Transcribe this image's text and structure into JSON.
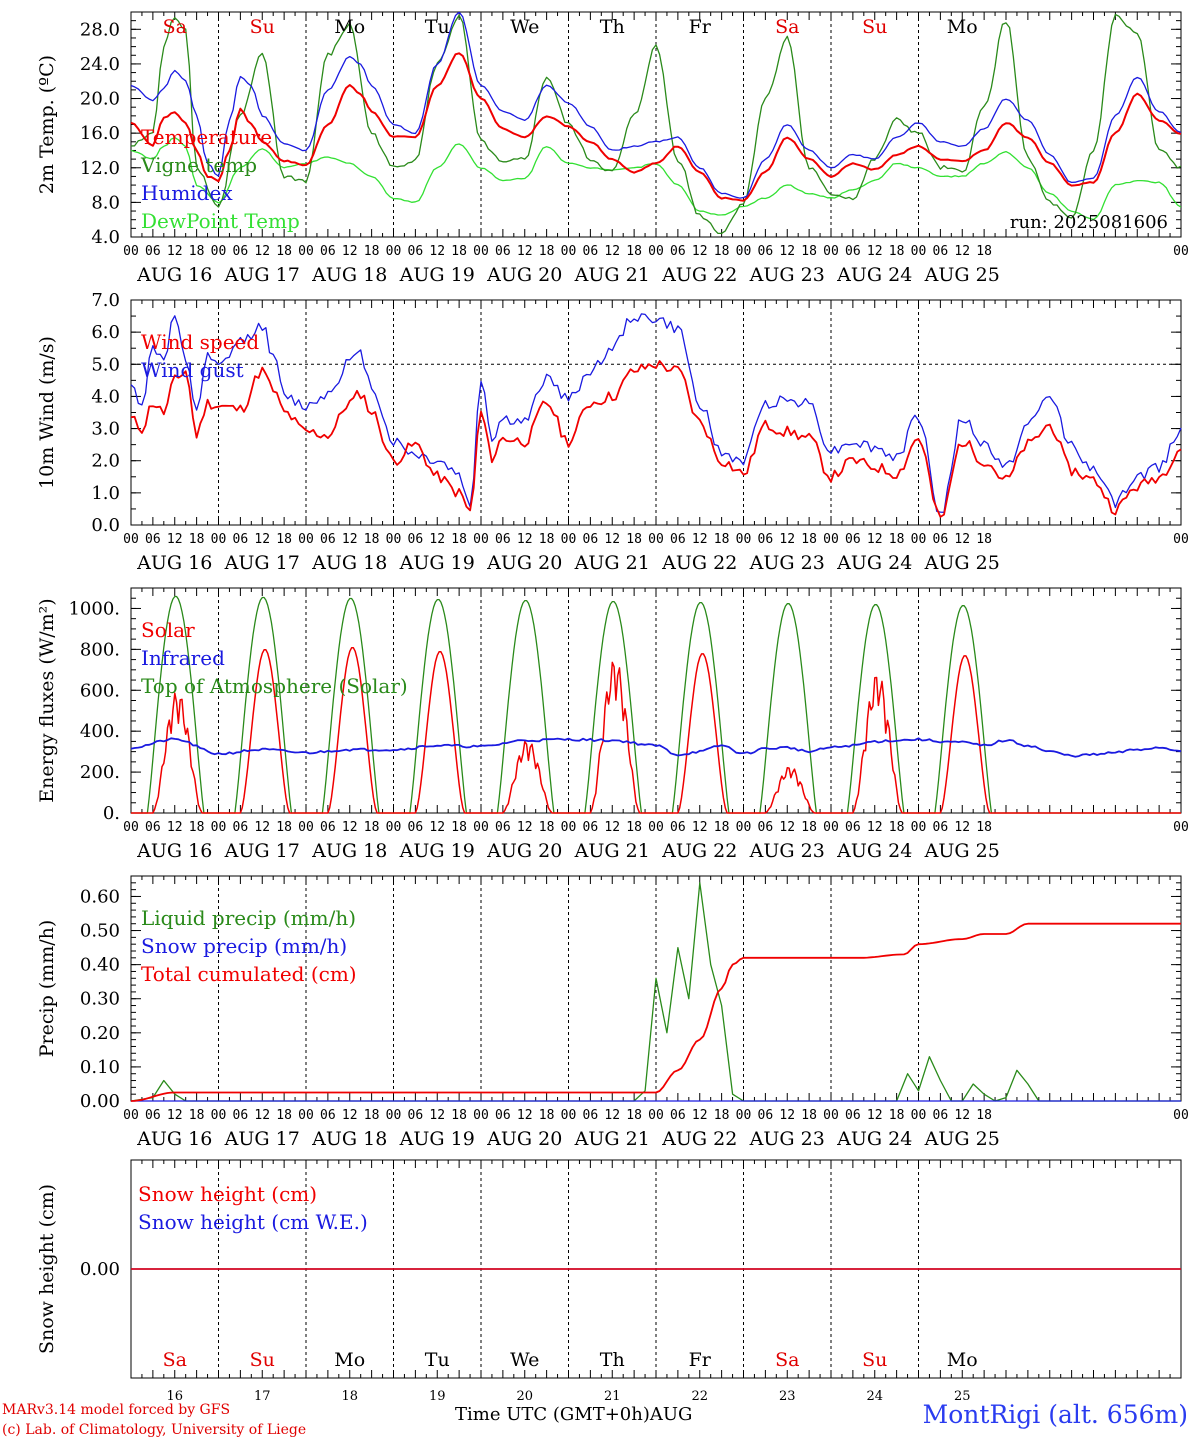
{
  "x_axis": {
    "hour_ticks": [
      "00",
      "06",
      "12",
      "18"
    ],
    "final_tick": "00",
    "dates": [
      "AUG 16",
      "AUG 17",
      "AUG 18",
      "AUG 19",
      "AUG 20",
      "AUG 21",
      "AUG 22",
      "AUG 23",
      "AUG 24",
      "AUG 25"
    ],
    "weekdays": [
      "Sa",
      "Su",
      "Mo",
      "Tu",
      "We",
      "Th",
      "Fr",
      "Sa",
      "Su",
      "Mo"
    ],
    "weekday_colors": [
      "#e00000",
      "#e00000",
      "#000000",
      "#000000",
      "#000000",
      "#000000",
      "#000000",
      "#e00000",
      "#e00000",
      "#000000"
    ],
    "day_numbers": [
      "16",
      "17",
      "18",
      "19",
      "20",
      "21",
      "22",
      "23",
      "24",
      "25"
    ]
  },
  "colors": {
    "red": "#f00000",
    "green": "#2a8a1a",
    "blue": "#1a1ae0",
    "lightgreen": "#33e033",
    "black": "#000000"
  },
  "chart_data": [
    {
      "type": "line",
      "ylabel": "2m Temp. (ºC)",
      "ylim": [
        4,
        30
      ],
      "yticks": [
        "4.0",
        "8.0",
        "12.0",
        "16.0",
        "20.0",
        "24.0",
        "28.0"
      ],
      "annotation": "run: 2025081606",
      "x_unit": "hours since AUG 16 00 UTC",
      "series": [
        {
          "name": "Temperature",
          "color": "red",
          "x": [
            0,
            6,
            9,
            12,
            15,
            18,
            21,
            24,
            27,
            30,
            33,
            36,
            42,
            48,
            54,
            60,
            63,
            66,
            72,
            78,
            84,
            90,
            96,
            102,
            108,
            114,
            120,
            126,
            132,
            138,
            144,
            150,
            156,
            162,
            168,
            174,
            180,
            186,
            192,
            198,
            204,
            210,
            216,
            222,
            228,
            234,
            240,
            246,
            252,
            258,
            264,
            270,
            276,
            282,
            288
          ],
          "y": [
            17.2,
            14.6,
            17.8,
            18.4,
            17.2,
            14.0,
            11.0,
            10.5,
            14.0,
            18.8,
            17.0,
            15.0,
            12.8,
            12.3,
            17.0,
            21.5,
            20.5,
            18.5,
            15.6,
            15.5,
            21.5,
            25.3,
            20.0,
            16.5,
            15.5,
            18.0,
            16.8,
            15.0,
            13.0,
            11.5,
            12.5,
            14.5,
            11.5,
            8.5,
            8.2,
            11.5,
            15.5,
            13.0,
            11.0,
            12.5,
            11.8,
            13.5,
            14.5,
            13.0,
            12.8,
            14.0,
            17.2,
            15.5,
            12.5,
            10.0,
            10.3,
            16.0,
            20.5,
            17.5,
            15.9
          ]
        },
        {
          "name": "Vigne temp",
          "color": "green",
          "x": [
            0,
            6,
            9,
            12,
            15,
            18,
            24,
            30,
            36,
            42,
            48,
            54,
            60,
            66,
            72,
            78,
            84,
            90,
            96,
            102,
            108,
            114,
            120,
            126,
            132,
            138,
            144,
            150,
            156,
            162,
            168,
            174,
            180,
            186,
            192,
            198,
            204,
            210,
            216,
            222,
            228,
            234,
            240,
            246,
            252,
            258,
            264,
            270,
            276,
            282,
            288
          ],
          "y": [
            14.5,
            16.0,
            26.0,
            29.5,
            28.0,
            12.0,
            7.5,
            18.0,
            25.0,
            11.0,
            10.5,
            25.0,
            28.5,
            16.0,
            12.0,
            13.0,
            24.0,
            29.5,
            15.0,
            12.5,
            13.0,
            22.5,
            17.0,
            13.0,
            11.5,
            18.0,
            26.0,
            13.0,
            6.5,
            4.5,
            8.0,
            20.0,
            27.0,
            12.0,
            9.0,
            8.5,
            13.0,
            17.5,
            16.0,
            12.0,
            11.5,
            19.0,
            29.0,
            13.0,
            8.0,
            6.0,
            14.0,
            29.5,
            27.5,
            14.0,
            12.0
          ]
        },
        {
          "name": "Humidex",
          "color": "blue",
          "x": [
            0,
            6,
            9,
            12,
            15,
            18,
            21,
            24,
            27,
            30,
            33,
            36,
            42,
            48,
            54,
            60,
            63,
            66,
            72,
            78,
            84,
            90,
            96,
            102,
            108,
            114,
            120,
            126,
            132,
            138,
            144,
            150,
            156,
            162,
            168,
            174,
            180,
            186,
            192,
            198,
            204,
            210,
            216,
            222,
            228,
            234,
            240,
            246,
            252,
            258,
            264,
            270,
            276,
            282,
            288
          ],
          "y": [
            21.5,
            19.8,
            21.2,
            23.2,
            22.0,
            18.0,
            12.5,
            11.0,
            17.5,
            22.5,
            21.5,
            18.0,
            14.8,
            14.0,
            21.0,
            24.8,
            24.0,
            21.5,
            17.0,
            16.0,
            24.0,
            30.0,
            21.5,
            18.5,
            17.5,
            21.5,
            19.5,
            16.8,
            14.0,
            14.5,
            15.0,
            15.5,
            12.0,
            9.0,
            8.5,
            13.0,
            17.0,
            14.0,
            12.0,
            13.5,
            13.0,
            15.5,
            17.2,
            15.0,
            14.5,
            16.5,
            20.0,
            17.5,
            13.5,
            10.3,
            10.8,
            18.0,
            22.5,
            18.5,
            16.0
          ]
        },
        {
          "name": "DewPoint Temp",
          "color": "lightgreen",
          "x": [
            0,
            6,
            9,
            12,
            15,
            18,
            24,
            30,
            36,
            42,
            48,
            54,
            60,
            66,
            72,
            78,
            84,
            90,
            96,
            102,
            108,
            114,
            120,
            126,
            132,
            138,
            144,
            150,
            156,
            162,
            168,
            174,
            180,
            186,
            192,
            198,
            204,
            210,
            216,
            222,
            228,
            234,
            240,
            246,
            252,
            258,
            264,
            270,
            276,
            282,
            288
          ],
          "y": [
            14.0,
            13.0,
            14.5,
            15.5,
            14.5,
            10.0,
            8.0,
            12.0,
            14.2,
            12.0,
            12.5,
            13.2,
            12.5,
            11.0,
            8.5,
            8.0,
            12.0,
            14.8,
            12.0,
            10.5,
            10.8,
            14.5,
            12.5,
            12.0,
            11.8,
            12.0,
            12.5,
            10.0,
            7.0,
            6.5,
            7.5,
            8.5,
            10.0,
            9.0,
            8.5,
            9.5,
            10.5,
            12.5,
            12.0,
            11.0,
            11.0,
            12.5,
            13.8,
            12.0,
            9.0,
            7.0,
            6.0,
            10.0,
            10.5,
            10.3,
            7.5
          ]
        }
      ]
    },
    {
      "type": "line",
      "ylabel": "10m Wind (m/s)",
      "ylim": [
        0,
        7
      ],
      "yticks": [
        "0.0",
        "1.0",
        "2.0",
        "3.0",
        "4.0",
        "5.0",
        "6.0",
        "7.0"
      ],
      "reference_line": 5.0,
      "x_unit": "hours since AUG 16 00 UTC",
      "series": [
        {
          "name": "Wind speed",
          "color": "red",
          "x": [
            0,
            3,
            6,
            9,
            12,
            15,
            18,
            21,
            24,
            30,
            36,
            39,
            42,
            48,
            54,
            60,
            63,
            66,
            72,
            78,
            84,
            90,
            93,
            96,
            99,
            102,
            108,
            114,
            120,
            126,
            132,
            138,
            144,
            150,
            156,
            162,
            168,
            174,
            180,
            186,
            192,
            198,
            204,
            210,
            216,
            222,
            228,
            234,
            240,
            246,
            252,
            258,
            264,
            270,
            276,
            282,
            288
          ],
          "y": [
            3.3,
            3.0,
            3.8,
            3.5,
            4.5,
            4.8,
            2.8,
            3.8,
            3.7,
            3.6,
            4.8,
            4.2,
            3.5,
            2.9,
            2.8,
            3.8,
            4.1,
            3.5,
            2.0,
            2.5,
            1.5,
            1.0,
            0.4,
            3.5,
            2.1,
            2.7,
            2.6,
            3.8,
            2.6,
            3.8,
            4.0,
            4.8,
            5.0,
            4.8,
            3.2,
            2.0,
            1.6,
            3.1,
            2.9,
            2.7,
            1.5,
            2.0,
            1.8,
            1.6,
            2.7,
            0.2,
            2.6,
            2.0,
            1.4,
            2.5,
            3.1,
            1.7,
            1.4,
            0.5,
            1.2,
            1.5,
            2.4
          ]
        },
        {
          "name": "Wind gust",
          "color": "blue",
          "x": [
            0,
            3,
            6,
            9,
            12,
            15,
            18,
            21,
            24,
            30,
            36,
            39,
            42,
            48,
            54,
            60,
            63,
            66,
            72,
            78,
            84,
            90,
            93,
            96,
            99,
            102,
            108,
            114,
            120,
            126,
            132,
            138,
            144,
            150,
            156,
            162,
            168,
            174,
            180,
            186,
            192,
            198,
            204,
            210,
            216,
            222,
            228,
            234,
            240,
            246,
            252,
            258,
            264,
            270,
            276,
            282,
            288
          ],
          "y": [
            4.3,
            3.8,
            5.5,
            5.2,
            6.5,
            5.0,
            3.6,
            5.2,
            4.9,
            5.7,
            6.2,
            5.3,
            4.0,
            3.7,
            4.1,
            5.1,
            5.3,
            4.3,
            2.6,
            2.2,
            2.0,
            1.6,
            0.5,
            4.6,
            2.7,
            3.3,
            3.2,
            4.6,
            3.9,
            4.8,
            5.5,
            6.5,
            6.4,
            6.1,
            3.8,
            2.2,
            2.0,
            3.8,
            3.9,
            3.8,
            2.3,
            2.6,
            2.4,
            2.1,
            3.4,
            0.3,
            3.3,
            2.5,
            1.8,
            3.1,
            4.0,
            2.5,
            1.7,
            0.7,
            1.5,
            1.8,
            3.0
          ]
        }
      ]
    },
    {
      "type": "line",
      "ylabel": "Energy fluxes (W/m²)",
      "ylim": [
        0,
        1100
      ],
      "yticks": [
        "0.",
        "200.",
        "400.",
        "600.",
        "800.",
        "1000."
      ],
      "x_unit": "hours since AUG 16 00 UTC",
      "daily_solar_peaks": [
        600,
        800,
        810,
        790,
        360,
        760,
        780,
        230,
        690,
        770
      ],
      "daily_toa_peaks": [
        1060,
        1055,
        1050,
        1045,
        1040,
        1035,
        1030,
        1025,
        1020,
        1015
      ],
      "series": [
        {
          "name": "Solar",
          "color": "red"
        },
        {
          "name": "Infrared",
          "color": "blue",
          "x": [
            0,
            12,
            24,
            36,
            48,
            60,
            72,
            84,
            96,
            108,
            120,
            132,
            144,
            150,
            156,
            162,
            168,
            174,
            180,
            186,
            192,
            198,
            204,
            210,
            216,
            222,
            228,
            234,
            240,
            246,
            252,
            258,
            264,
            270,
            276,
            282,
            288
          ],
          "y": [
            320,
            360,
            290,
            310,
            295,
            310,
            310,
            330,
            325,
            355,
            360,
            355,
            330,
            285,
            300,
            330,
            290,
            315,
            320,
            300,
            320,
            330,
            350,
            355,
            360,
            350,
            345,
            330,
            355,
            330,
            300,
            280,
            285,
            295,
            310,
            320,
            305
          ]
        },
        {
          "name": "Top of Atmosphere (Solar)",
          "color": "green"
        }
      ]
    },
    {
      "type": "line",
      "ylabel": "Precip (mm/h)",
      "ylim": [
        0,
        0.66
      ],
      "yticks": [
        "0.00",
        "0.10",
        "0.20",
        "0.30",
        "0.40",
        "0.50",
        "0.60"
      ],
      "x_unit": "hours since AUG 16 00 UTC",
      "series": [
        {
          "name": "Liquid precip (mm/h)",
          "color": "green",
          "x": [
            0,
            6,
            9,
            12,
            15,
            120,
            138,
            141,
            144,
            147,
            150,
            153,
            156,
            159,
            162,
            165,
            168,
            210,
            213,
            216,
            219,
            222,
            225,
            228,
            231,
            234,
            237,
            240,
            243,
            246,
            249,
            252,
            288
          ],
          "y": [
            0,
            0.01,
            0.06,
            0.02,
            0,
            0,
            0,
            0.03,
            0.36,
            0.2,
            0.45,
            0.3,
            0.64,
            0.4,
            0.28,
            0.02,
            0,
            0,
            0.08,
            0.03,
            0.13,
            0.06,
            0,
            0,
            0.05,
            0.02,
            0,
            0.01,
            0.09,
            0.05,
            0,
            0,
            0
          ]
        },
        {
          "name": "Snow precip (mm/h)",
          "color": "blue",
          "x": [
            0,
            288
          ],
          "y": [
            0,
            0
          ]
        },
        {
          "name": "Total cumulated (cm)",
          "color": "red",
          "x": [
            0,
            12,
            144,
            150,
            156,
            162,
            165,
            168,
            200,
            212,
            216,
            228,
            234,
            240,
            246,
            288
          ],
          "y": [
            0,
            0.025,
            0.025,
            0.09,
            0.18,
            0.33,
            0.4,
            0.42,
            0.42,
            0.43,
            0.46,
            0.475,
            0.49,
            0.49,
            0.52,
            0.52
          ]
        }
      ]
    },
    {
      "type": "line",
      "ylabel": "Snow height (cm)",
      "yticks": [
        "0.00"
      ],
      "x_unit": "hours since AUG 16 00 UTC",
      "series": [
        {
          "name": "Snow height (cm)",
          "color": "red",
          "x": [
            0,
            288
          ],
          "y": [
            0,
            0
          ]
        },
        {
          "name": "Snow height (cm W.E.)",
          "color": "blue",
          "x": [
            0,
            288
          ],
          "y": [
            0,
            0
          ]
        }
      ]
    }
  ],
  "footer": {
    "credit_line1": "MARv3.14 model forced by GFS",
    "credit_line2": "(c) Lab. of Climatology, University of Liege",
    "time_label": "Time UTC (GMT+0h)AUG",
    "station": "MontRigi (alt. 656m)"
  }
}
